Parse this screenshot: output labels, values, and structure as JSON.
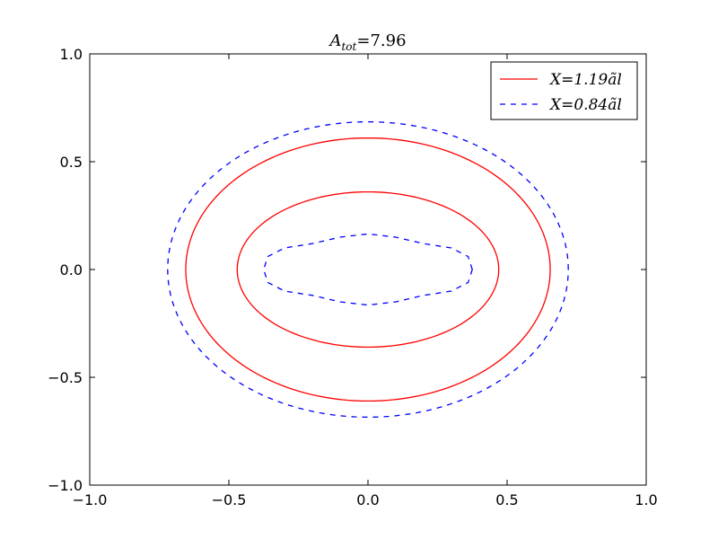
{
  "chart_data": {
    "type": "line",
    "title": {
      "symbol": "A",
      "subscript": "tot",
      "equals": "=",
      "value": "7.96"
    },
    "xlabel": "",
    "ylabel": "",
    "xlim": [
      -1.0,
      1.0
    ],
    "ylim": [
      -1.0,
      1.0
    ],
    "xticks": [
      "−1.0",
      "−0.5",
      "0.0",
      "0.5",
      "1.0"
    ],
    "yticks": [
      "−1.0",
      "−0.5",
      "0.0",
      "0.5",
      "1.0"
    ],
    "xtick_values": [
      -1.0,
      -0.5,
      0.0,
      0.5,
      1.0
    ],
    "ytick_values": [
      -1.0,
      -0.5,
      0.0,
      0.5,
      1.0
    ],
    "grid": false,
    "legend_position": "top-right",
    "series": [
      {
        "name": "X=1.19ãl",
        "color": "#ff0000",
        "style": "solid",
        "contours": [
          {
            "a": 0.655,
            "b": 0.61
          },
          {
            "a": 0.47,
            "b": 0.36
          }
        ]
      },
      {
        "name": "X=0.84ãl",
        "color": "#0000ff",
        "style": "dashed",
        "contours": [
          {
            "a": 0.72,
            "b": 0.685
          },
          {
            "points": [
              [
                0.375,
                0.0
              ],
              [
                0.36,
                0.06
              ],
              [
                0.3,
                0.1
              ],
              [
                0.2,
                0.12
              ],
              [
                0.1,
                0.15
              ],
              [
                0.0,
                0.165
              ],
              [
                -0.1,
                0.15
              ],
              [
                -0.2,
                0.12
              ],
              [
                -0.3,
                0.1
              ],
              [
                -0.36,
                0.06
              ],
              [
                -0.375,
                0.0
              ],
              [
                -0.36,
                -0.06
              ],
              [
                -0.3,
                -0.1
              ],
              [
                -0.2,
                -0.12
              ],
              [
                -0.1,
                -0.15
              ],
              [
                0.0,
                -0.165
              ],
              [
                0.1,
                -0.15
              ],
              [
                0.2,
                -0.12
              ],
              [
                0.3,
                -0.1
              ],
              [
                0.36,
                -0.06
              ]
            ]
          }
        ]
      }
    ]
  }
}
